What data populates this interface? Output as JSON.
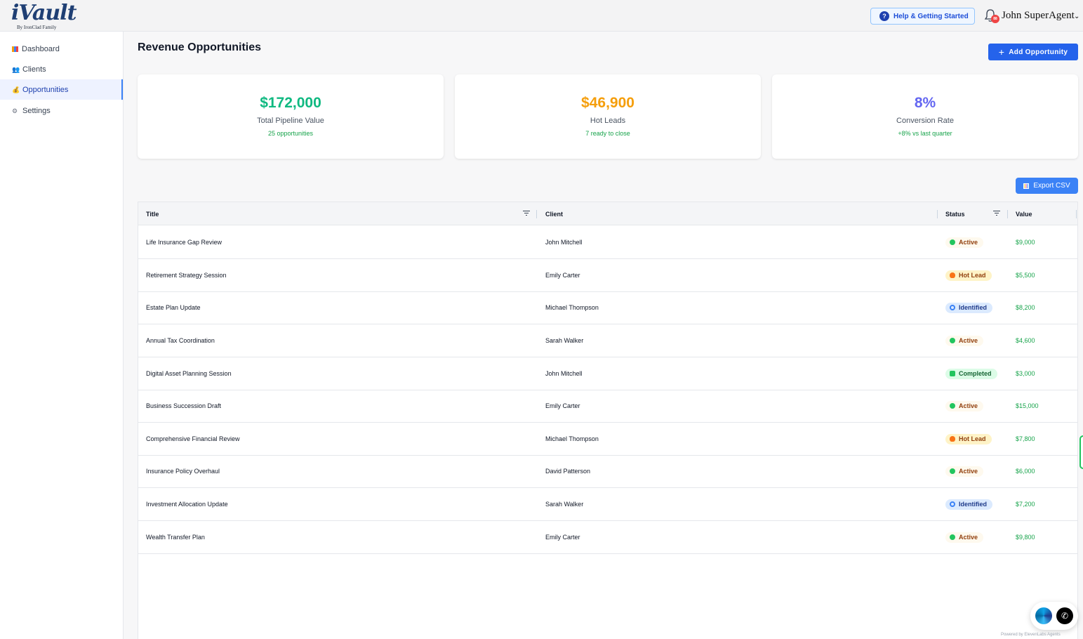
{
  "header": {
    "logo_text": "iVault",
    "logo_sub": "By IronClad Family",
    "help_label": "Help & Getting Started",
    "notification_count": "88",
    "user_name": "John SuperAgent"
  },
  "sidebar": {
    "items": [
      {
        "label": "Dashboard",
        "icon": "bar-chart-icon"
      },
      {
        "label": "Clients",
        "icon": "people-icon"
      },
      {
        "label": "Opportunities",
        "icon": "moneybag-icon",
        "active": true
      },
      {
        "label": "Settings",
        "icon": "gear-icon"
      }
    ]
  },
  "main": {
    "title": "Revenue Opportunities",
    "add_label": "Add Opportunity",
    "export_label": "Export CSV",
    "cards": [
      {
        "value": "$172,000",
        "label": "Total Pipeline Value",
        "sub": "25 opportunities",
        "color": "#10b981"
      },
      {
        "value": "$46,900",
        "label": "Hot Leads",
        "sub": "7 ready to close",
        "color": "#f59e0b"
      },
      {
        "value": "8%",
        "label": "Conversion Rate",
        "sub": "+8% vs last quarter",
        "color": "#6366f1"
      }
    ]
  },
  "table": {
    "columns": [
      "Title",
      "Client",
      "Status",
      "Value"
    ],
    "rows": [
      {
        "title": "Life Insurance Gap Review",
        "client": "John Mitchell",
        "status": "Active",
        "value": "$9,000"
      },
      {
        "title": "Retirement Strategy Session",
        "client": "Emily Carter",
        "status": "Hot Lead",
        "value": "$5,500"
      },
      {
        "title": "Estate Plan Update",
        "client": "Michael Thompson",
        "status": "Identified",
        "value": "$8,200"
      },
      {
        "title": "Annual Tax Coordination",
        "client": "Sarah Walker",
        "status": "Active",
        "value": "$4,600"
      },
      {
        "title": "Digital Asset Planning Session",
        "client": "John Mitchell",
        "status": "Completed",
        "value": "$3,000"
      },
      {
        "title": "Business Succession Draft",
        "client": "Emily Carter",
        "status": "Active",
        "value": "$15,000"
      },
      {
        "title": "Comprehensive Financial Review",
        "client": "Michael Thompson",
        "status": "Hot Lead",
        "value": "$7,800"
      },
      {
        "title": "Insurance Policy Overhaul",
        "client": "David Patterson",
        "status": "Active",
        "value": "$6,000"
      },
      {
        "title": "Investment Allocation Update",
        "client": "Sarah Walker",
        "status": "Identified",
        "value": "$7,200"
      },
      {
        "title": "Wealth Transfer Plan",
        "client": "Emily Carter",
        "status": "Active",
        "value": "$9,800"
      }
    ]
  },
  "widget": {
    "powered_by": "Powered by ElevenLabs Agents"
  }
}
